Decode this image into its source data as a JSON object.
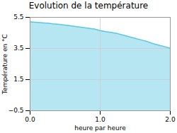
{
  "chart_data": {
    "type": "area",
    "title": "Evolution de la température",
    "xlabel": "heure par heure",
    "ylabel": "Température en °C",
    "x": [
      0,
      0.083,
      0.167,
      0.25,
      0.333,
      0.417,
      0.5,
      0.583,
      0.667,
      0.75,
      0.833,
      0.917,
      1.0,
      1.083,
      1.167,
      1.25,
      1.333,
      1.417,
      1.5,
      1.583,
      1.667,
      1.75,
      1.833,
      1.917,
      2.0
    ],
    "values": [
      5.2,
      5.18,
      5.15,
      5.12,
      5.08,
      5.05,
      5.0,
      4.95,
      4.9,
      4.85,
      4.8,
      4.75,
      4.65,
      4.58,
      4.52,
      4.45,
      4.35,
      4.25,
      4.15,
      4.05,
      3.95,
      3.82,
      3.72,
      3.62,
      3.52
    ],
    "color": "#5cc8e0",
    "xlim": [
      0,
      2
    ],
    "ylim": [
      -0.5,
      5.5
    ],
    "xticks": [
      0,
      1,
      2
    ],
    "yticks": [
      -0.5,
      1.5,
      3.5,
      5.5
    ],
    "grid": true
  }
}
